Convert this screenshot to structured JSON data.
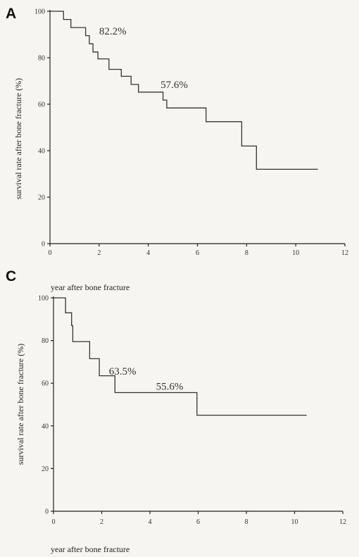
{
  "chart_data": [
    {
      "type": "line",
      "panel": "A",
      "xlabel": "",
      "ylabel": "survival rate after bone fracture (%)",
      "xlim": [
        0,
        12
      ],
      "ylim": [
        0,
        100
      ],
      "xticks": [
        0,
        2,
        4,
        6,
        8,
        10,
        12
      ],
      "yticks": [
        0,
        20,
        40,
        60,
        80,
        100
      ],
      "step_points": [
        [
          0,
          100
        ],
        [
          0.55,
          100
        ],
        [
          0.55,
          96.5
        ],
        [
          0.85,
          96.5
        ],
        [
          0.85,
          93
        ],
        [
          1.45,
          93
        ],
        [
          1.45,
          89.5
        ],
        [
          1.6,
          89.5
        ],
        [
          1.6,
          86
        ],
        [
          1.75,
          86
        ],
        [
          1.75,
          82.5
        ],
        [
          1.95,
          82.5
        ],
        [
          1.95,
          79.5
        ],
        [
          2.4,
          79.5
        ],
        [
          2.4,
          75
        ],
        [
          2.9,
          75
        ],
        [
          2.9,
          72
        ],
        [
          3.3,
          72
        ],
        [
          3.3,
          68.5
        ],
        [
          3.6,
          68.5
        ],
        [
          3.6,
          65.2
        ],
        [
          4.6,
          65.2
        ],
        [
          4.6,
          61.8
        ],
        [
          4.75,
          61.8
        ],
        [
          4.75,
          58.4
        ],
        [
          6.35,
          58.4
        ],
        [
          6.35,
          52.5
        ],
        [
          7.8,
          52.5
        ],
        [
          7.8,
          42
        ],
        [
          8.4,
          42
        ],
        [
          8.4,
          32
        ],
        [
          10.9,
          32
        ]
      ],
      "annotations": [
        {
          "text": "82.2%",
          "x": 2.0,
          "y": 90
        },
        {
          "text": "57.6%",
          "x": 4.5,
          "y": 67
        }
      ]
    },
    {
      "type": "line",
      "panel": "C",
      "xlabel": "year after bone fracture",
      "ylabel": "survival rate after bone fracture (%)",
      "xlim": [
        0,
        12
      ],
      "ylim": [
        0,
        100
      ],
      "xticks": [
        0,
        2,
        4,
        6,
        8,
        10,
        12
      ],
      "yticks": [
        0,
        20,
        40,
        60,
        80,
        100
      ],
      "step_points": [
        [
          0,
          100
        ],
        [
          0.5,
          100
        ],
        [
          0.5,
          93
        ],
        [
          0.75,
          93
        ],
        [
          0.75,
          87
        ],
        [
          0.8,
          87
        ],
        [
          0.8,
          79.5
        ],
        [
          1.5,
          79.5
        ],
        [
          1.5,
          71.5
        ],
        [
          1.9,
          71.5
        ],
        [
          1.9,
          63.5
        ],
        [
          2.55,
          63.5
        ],
        [
          2.55,
          55.6
        ],
        [
          5.95,
          55.6
        ],
        [
          5.95,
          45
        ],
        [
          10.5,
          45
        ]
      ],
      "annotations": [
        {
          "text": "63.5%",
          "x": 2.3,
          "y": 64
        },
        {
          "text": "55.6%",
          "x": 4.25,
          "y": 57
        }
      ]
    }
  ],
  "panels": [
    {
      "letter": "A",
      "ylabel": "survival rate after bone fracture (%)",
      "xlabel": "",
      "ticks_x": [
        "0",
        "2",
        "4",
        "6",
        "8",
        "10",
        "12"
      ],
      "ticks_y": [
        "0",
        "20",
        "40",
        "60",
        "80",
        "100"
      ],
      "annotations": [
        "82.2%",
        "57.6%"
      ]
    },
    {
      "letter": "C",
      "ylabel": "survival rate after bone fracture (%)",
      "xlabel": "year after bone fracture",
      "ticks_x": [
        "0",
        "2",
        "4",
        "6",
        "8",
        "10",
        "12"
      ],
      "ticks_y": [
        "0",
        "20",
        "40",
        "60",
        "80",
        "100"
      ],
      "annotations": [
        "63.5%",
        "55.6%"
      ]
    }
  ],
  "between_label": "year after bone fracture"
}
